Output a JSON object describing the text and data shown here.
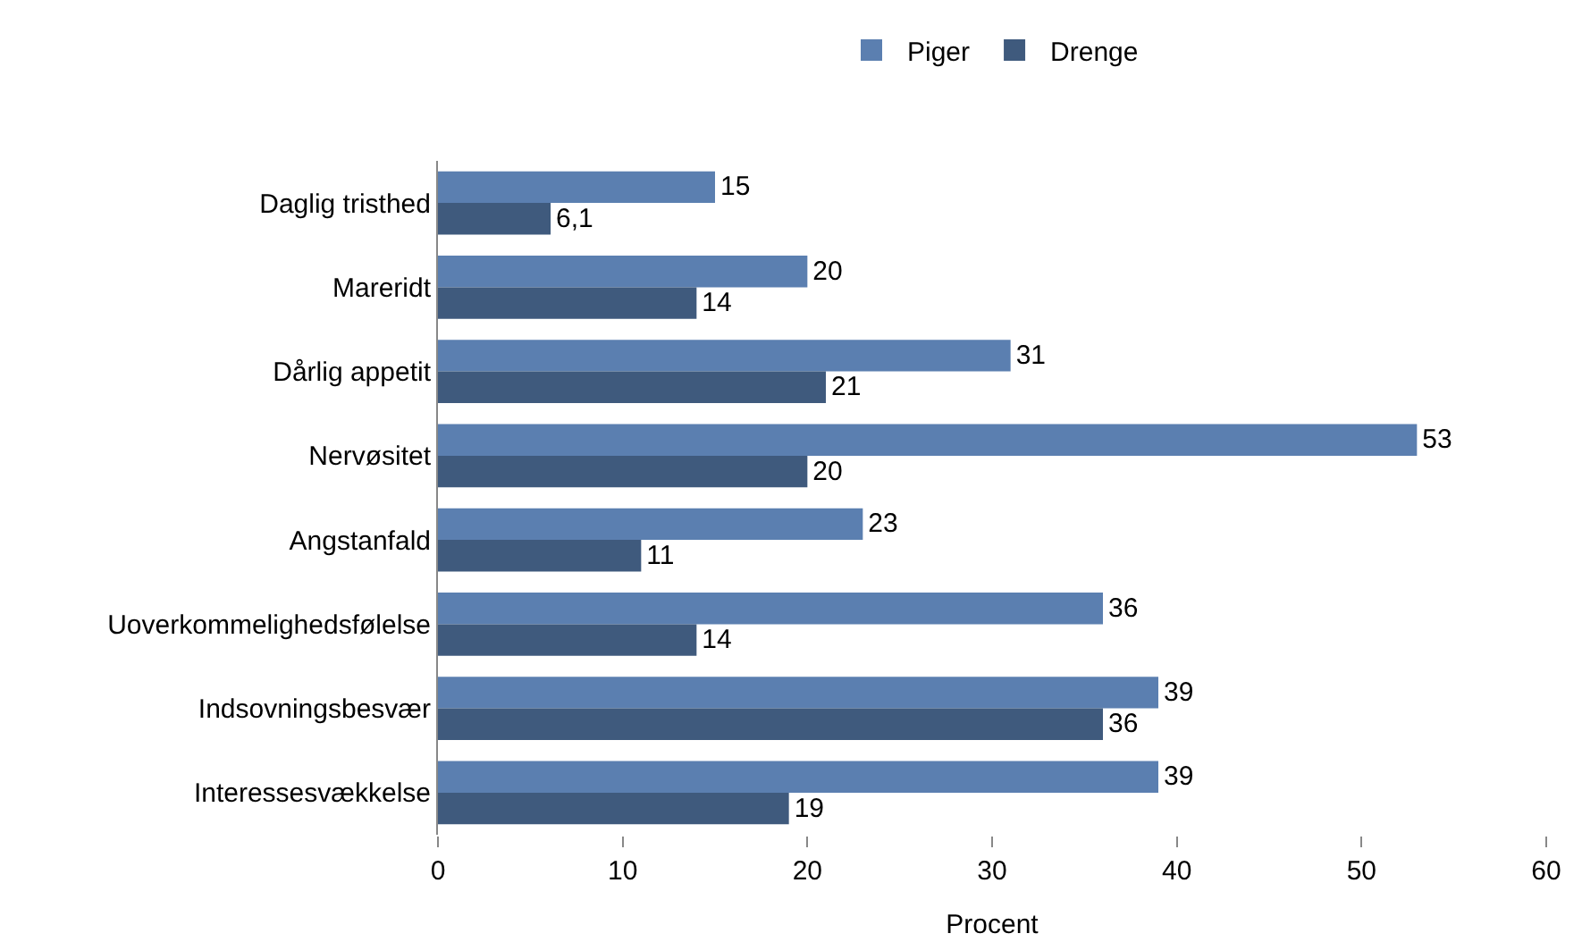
{
  "chart_data": {
    "type": "bar",
    "orientation": "horizontal",
    "categories": [
      "Daglig tristhed",
      "Mareridt",
      "Dårlig appetit",
      "Nervøsitet",
      "Angstanfald",
      "Uoverkommelighedsfølelse",
      "Indsovningsbesvær",
      "Interessesvækkelse"
    ],
    "series": [
      {
        "name": "Piger",
        "color": "#5b7fb0",
        "values": [
          15,
          20,
          31,
          53,
          23,
          36,
          39,
          39
        ],
        "value_labels": [
          "15",
          "20",
          "31",
          "53",
          "23",
          "36",
          "39",
          "39"
        ]
      },
      {
        "name": "Drenge",
        "color": "#3f5a7d",
        "values": [
          6.1,
          14,
          21,
          20,
          11,
          14,
          36,
          19
        ],
        "value_labels": [
          "6,1",
          "14",
          "21",
          "20",
          "11",
          "14",
          "36",
          "19"
        ]
      }
    ],
    "xlim": [
      0,
      60
    ],
    "xticks": [
      0,
      10,
      20,
      30,
      40,
      50,
      60
    ],
    "xlabel": "Procent",
    "grid": false,
    "legend": "top"
  }
}
